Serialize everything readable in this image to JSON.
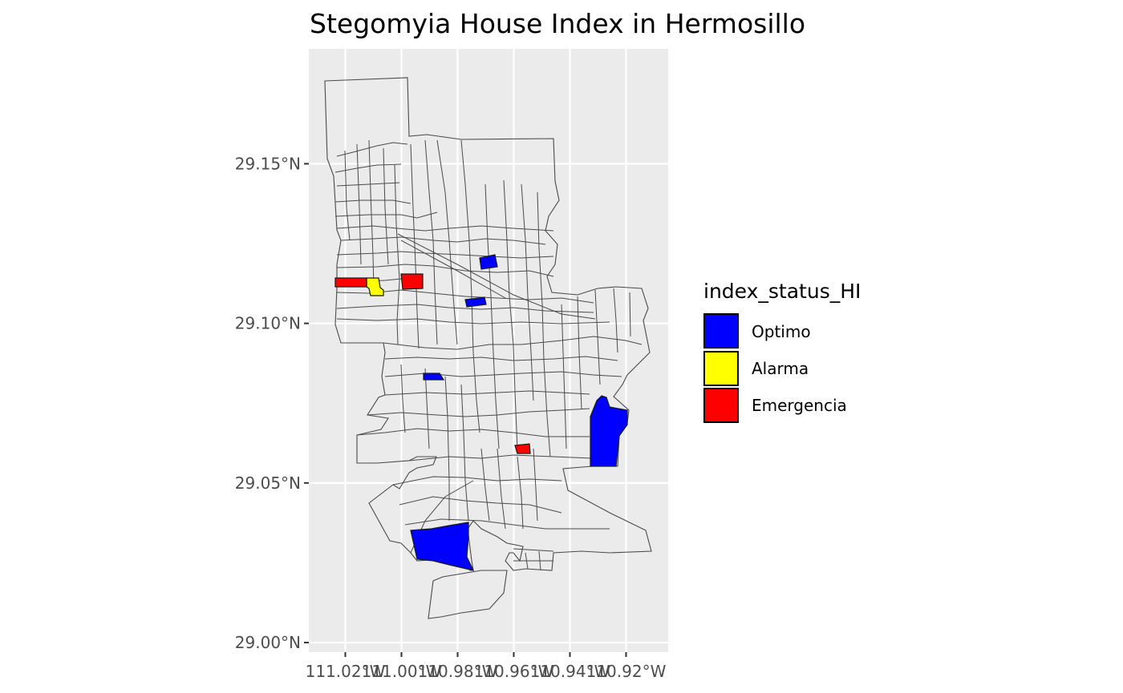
{
  "chart_data": {
    "type": "choropleth-map",
    "title": "Stegomyia House Index in Hermosillo",
    "x_ticks": [
      "111.02°W",
      "111.00°W",
      "110.98°W",
      "110.96°W",
      "110.94°W",
      "110.92°W"
    ],
    "y_ticks": [
      "29.15°N",
      "29.10°N",
      "29.05°N",
      "29.00°N"
    ],
    "x_tick_values": [
      -111.02,
      -111.0,
      -110.98,
      -110.96,
      -110.94,
      -110.92
    ],
    "y_tick_values": [
      29.15,
      29.1,
      29.05,
      29.0
    ],
    "xlim": [
      -111.033,
      -110.905
    ],
    "ylim": [
      28.997,
      29.186
    ],
    "grid": true,
    "legend": {
      "title": "index_status_HI",
      "position": "right",
      "entries": [
        {
          "label": "Optimo",
          "color": "#0000ff"
        },
        {
          "label": "Alarma",
          "color": "#ffff00"
        },
        {
          "label": "Emergencia",
          "color": "#ff0000"
        }
      ]
    },
    "highlighted_areas": [
      {
        "status": "Optimo",
        "color": "#0000ff",
        "center_lon": -110.969,
        "center_lat": 29.12
      },
      {
        "status": "Optimo",
        "color": "#0000ff",
        "center_lon": -110.973,
        "center_lat": 29.108
      },
      {
        "status": "Optimo",
        "color": "#0000ff",
        "center_lon": -110.991,
        "center_lat": 29.084
      },
      {
        "status": "Optimo",
        "color": "#0000ff",
        "center_lon": -110.925,
        "center_lat": 29.067
      },
      {
        "status": "Optimo",
        "color": "#0000ff",
        "center_lon": -110.987,
        "center_lat": 29.031
      },
      {
        "status": "Alarma",
        "color": "#ffff00",
        "center_lon": -111.013,
        "center_lat": 29.113
      },
      {
        "status": "Emergencia",
        "color": "#ff0000",
        "center_lon": -111.019,
        "center_lat": 29.114
      },
      {
        "status": "Emergencia",
        "color": "#ff0000",
        "center_lon": -110.996,
        "center_lat": 29.114
      },
      {
        "status": "Emergencia",
        "color": "#ff0000",
        "center_lon": -110.958,
        "center_lat": 29.062
      }
    ]
  }
}
